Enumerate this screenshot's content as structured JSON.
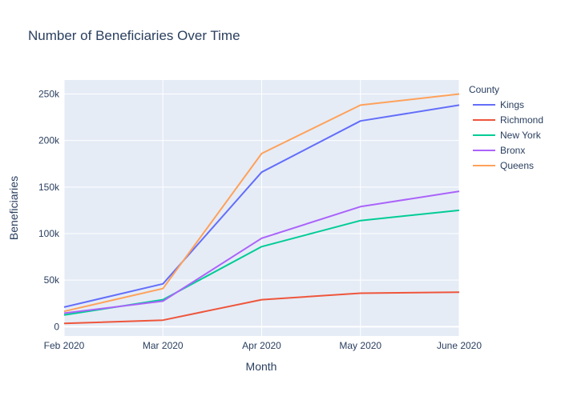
{
  "chart_data": {
    "type": "line",
    "title": "Number of Beneficiaries Over Time",
    "xlabel": "Month",
    "ylabel": "Beneficiaries",
    "x": [
      "Feb 2020",
      "Mar 2020",
      "Apr 2020",
      "May 2020",
      "June 2020"
    ],
    "ylim": [
      -10000,
      265000
    ],
    "yticks": [
      0,
      50000,
      100000,
      150000,
      200000,
      250000
    ],
    "ytick_labels": [
      "0",
      "50k",
      "100k",
      "150k",
      "200k",
      "250k"
    ],
    "grid": true,
    "legend": {
      "title": "County",
      "placement": "top-right"
    },
    "series": [
      {
        "name": "Kings",
        "color": "#636efa",
        "values": [
          21000,
          46000,
          166000,
          221000,
          238000
        ]
      },
      {
        "name": "Richmond",
        "color": "#ef553b",
        "values": [
          3500,
          7000,
          29000,
          36000,
          37000
        ]
      },
      {
        "name": "New York",
        "color": "#00cc96",
        "values": [
          12500,
          29000,
          86000,
          114000,
          125000
        ]
      },
      {
        "name": "Bronx",
        "color": "#ab63fa",
        "values": [
          14500,
          27500,
          95000,
          129000,
          145500
        ]
      },
      {
        "name": "Queens",
        "color": "#ffa15a",
        "values": [
          16500,
          41000,
          186000,
          238000,
          250000
        ]
      }
    ]
  }
}
